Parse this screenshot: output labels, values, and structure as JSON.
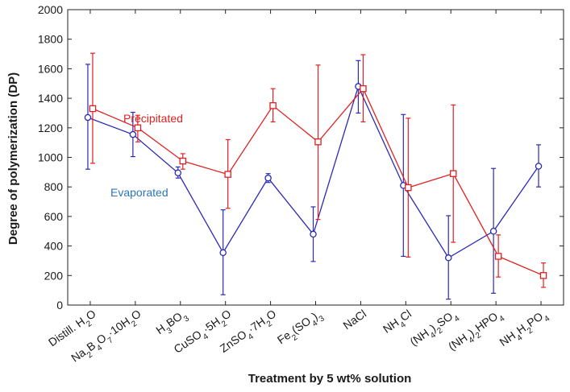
{
  "chart_data": {
    "type": "line",
    "title": "",
    "xlabel": "Treatment by 5 wt% solution",
    "ylabel": "Degree of polymerization (DP)",
    "ylim": [
      0,
      2000
    ],
    "yticks": [
      0,
      200,
      400,
      600,
      800,
      1000,
      1200,
      1400,
      1600,
      1800,
      2000
    ],
    "grid": false,
    "categories": [
      "Distill. H2O",
      "Na2B4O7·10H2O",
      "H3BO3",
      "CuSO4·5H2O",
      "ZnSO4·7H2O",
      "Fe2(SO4)3",
      "NaCl",
      "NH4Cl",
      "(NH4)2SO4",
      "(NH4)2HPO4",
      "NH4H2PO4"
    ],
    "category_labels": [
      [
        {
          "t": "Distill. H"
        },
        {
          "t": "2",
          "sub": true
        },
        {
          "t": "O"
        }
      ],
      [
        {
          "t": "Na"
        },
        {
          "t": "2",
          "sub": true
        },
        {
          "t": "B"
        },
        {
          "t": "4",
          "sub": true
        },
        {
          "t": "O"
        },
        {
          "t": "7",
          "sub": true
        },
        {
          "t": "·10H"
        },
        {
          "t": "2",
          "sub": true
        },
        {
          "t": "O"
        }
      ],
      [
        {
          "t": "H"
        },
        {
          "t": "3",
          "sub": true
        },
        {
          "t": "BO"
        },
        {
          "t": "3",
          "sub": true
        }
      ],
      [
        {
          "t": "CuSO"
        },
        {
          "t": "4",
          "sub": true
        },
        {
          "t": "·5H"
        },
        {
          "t": "2",
          "sub": true
        },
        {
          "t": "O"
        }
      ],
      [
        {
          "t": "ZnSO"
        },
        {
          "t": "4",
          "sub": true
        },
        {
          "t": "·7H"
        },
        {
          "t": "2",
          "sub": true
        },
        {
          "t": "O"
        }
      ],
      [
        {
          "t": "Fe"
        },
        {
          "t": "2",
          "sub": true
        },
        {
          "t": "(SO"
        },
        {
          "t": "4",
          "sub": true
        },
        {
          "t": ")"
        },
        {
          "t": "3",
          "sub": true
        }
      ],
      [
        {
          "t": "NaCl"
        }
      ],
      [
        {
          "t": "NH"
        },
        {
          "t": "4",
          "sub": true
        },
        {
          "t": "Cl"
        }
      ],
      [
        {
          "t": "(NH"
        },
        {
          "t": "4",
          "sub": true
        },
        {
          "t": ")"
        },
        {
          "t": "2",
          "sub": true
        },
        {
          "t": "SO"
        },
        {
          "t": "4",
          "sub": true
        }
      ],
      [
        {
          "t": "(NH"
        },
        {
          "t": "4",
          "sub": true
        },
        {
          "t": ")"
        },
        {
          "t": "2",
          "sub": true
        },
        {
          "t": "HPO"
        },
        {
          "t": "4",
          "sub": true
        }
      ],
      [
        {
          "t": "NH"
        },
        {
          "t": "4",
          "sub": true
        },
        {
          "t": "H"
        },
        {
          "t": "2",
          "sub": true
        },
        {
          "t": "PO"
        },
        {
          "t": "4",
          "sub": true
        }
      ]
    ],
    "series": [
      {
        "name": "Evaporated",
        "color": "#2a2ab8",
        "label_color": "#2e75b6",
        "marker": "circle",
        "values": [
          1270,
          1155,
          895,
          355,
          860,
          480,
          1480,
          810,
          320,
          500,
          940
        ],
        "err_low": [
          920,
          1005,
          860,
          70,
          830,
          295,
          1300,
          330,
          40,
          80,
          800
        ],
        "err_high": [
          1630,
          1305,
          935,
          645,
          890,
          665,
          1655,
          1290,
          605,
          925,
          1085
        ]
      },
      {
        "name": "Precipitated",
        "color": "#e02020",
        "label_color": "#e02020",
        "marker": "square",
        "values": [
          1330,
          1200,
          975,
          885,
          1350,
          1105,
          1465,
          795,
          890,
          330,
          200
        ],
        "err_low": [
          960,
          1105,
          920,
          655,
          1240,
          580,
          1240,
          325,
          425,
          190,
          120
        ],
        "err_high": [
          1705,
          1285,
          1025,
          1120,
          1465,
          1625,
          1695,
          1265,
          1355,
          475,
          285
        ]
      }
    ]
  }
}
